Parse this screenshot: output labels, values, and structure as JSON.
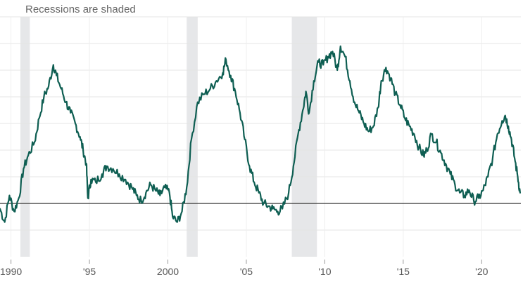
{
  "chart_data": {
    "type": "line",
    "annotation": "Recessions are shaded",
    "x_ticks": [
      {
        "label": "1990",
        "value": 1990
      },
      {
        "label": "'95",
        "value": 1995
      },
      {
        "label": "2000",
        "value": 2000
      },
      {
        "label": "'05",
        "value": 2005
      },
      {
        "label": "'10",
        "value": 2010
      },
      {
        "label": "'15",
        "value": 2015
      },
      {
        "label": "'20",
        "value": 2020
      }
    ],
    "xlim": [
      1989.3,
      2022.5
    ],
    "ylim": [
      -2,
      7
    ],
    "y_gridlines": [
      -1,
      1,
      2,
      3,
      4,
      5,
      6,
      7
    ],
    "baseline": 0,
    "recessions": [
      {
        "start": 1990.6,
        "end": 1991.2
      },
      {
        "start": 2001.2,
        "end": 2001.9
      },
      {
        "start": 2007.9,
        "end": 2009.5
      }
    ],
    "series": [
      {
        "color": "#0e5e52",
        "points": [
          [
            1989.3,
            -0.2
          ],
          [
            1989.6,
            -0.7
          ],
          [
            1989.9,
            0.3
          ],
          [
            1990.2,
            -0.3
          ],
          [
            1990.5,
            0.2
          ],
          [
            1990.8,
            1.3
          ],
          [
            1991.1,
            1.8
          ],
          [
            1991.5,
            2.3
          ],
          [
            1991.8,
            3.2
          ],
          [
            1992.1,
            4.0
          ],
          [
            1992.4,
            4.4
          ],
          [
            1992.7,
            5.2
          ],
          [
            1992.9,
            4.8
          ],
          [
            1993.2,
            4.3
          ],
          [
            1993.5,
            3.8
          ],
          [
            1993.8,
            3.4
          ],
          [
            1994.1,
            3.0
          ],
          [
            1994.4,
            2.5
          ],
          [
            1994.6,
            2.0
          ],
          [
            1994.8,
            1.5
          ],
          [
            1994.9,
            0.2
          ],
          [
            1995.1,
            0.9
          ],
          [
            1995.4,
            0.8
          ],
          [
            1995.8,
            1.1
          ],
          [
            1996.1,
            1.4
          ],
          [
            1996.5,
            1.3
          ],
          [
            1996.9,
            1.1
          ],
          [
            1997.3,
            0.9
          ],
          [
            1997.7,
            0.6
          ],
          [
            1998.0,
            0.3
          ],
          [
            1998.3,
            0.1
          ],
          [
            1998.6,
            0.4
          ],
          [
            1998.9,
            0.7
          ],
          [
            1999.2,
            0.5
          ],
          [
            1999.5,
            0.3
          ],
          [
            1999.8,
            0.6
          ],
          [
            2000.1,
            0.4
          ],
          [
            2000.3,
            -0.5
          ],
          [
            2000.6,
            -0.7
          ],
          [
            2000.9,
            -0.3
          ],
          [
            2001.2,
            0.6
          ],
          [
            2001.5,
            2.4
          ],
          [
            2001.9,
            3.8
          ],
          [
            2002.3,
            4.1
          ],
          [
            2002.7,
            4.3
          ],
          [
            2003.1,
            4.6
          ],
          [
            2003.5,
            4.9
          ],
          [
            2003.7,
            5.4
          ],
          [
            2004.0,
            4.8
          ],
          [
            2004.3,
            4.2
          ],
          [
            2004.6,
            3.4
          ],
          [
            2004.9,
            2.4
          ],
          [
            2005.2,
            1.4
          ],
          [
            2005.5,
            0.8
          ],
          [
            2005.8,
            0.4
          ],
          [
            2006.1,
            0.0
          ],
          [
            2006.4,
            -0.1
          ],
          [
            2006.7,
            -0.2
          ],
          [
            2007.0,
            -0.3
          ],
          [
            2007.3,
            -0.2
          ],
          [
            2007.7,
            0.4
          ],
          [
            2008.0,
            1.4
          ],
          [
            2008.3,
            2.6
          ],
          [
            2008.6,
            3.5
          ],
          [
            2008.8,
            4.2
          ],
          [
            2009.0,
            3.4
          ],
          [
            2009.3,
            4.6
          ],
          [
            2009.6,
            5.3
          ],
          [
            2009.9,
            5.2
          ],
          [
            2010.2,
            5.5
          ],
          [
            2010.5,
            5.7
          ],
          [
            2010.8,
            5.0
          ],
          [
            2011.0,
            5.9
          ],
          [
            2011.3,
            5.5
          ],
          [
            2011.6,
            4.6
          ],
          [
            2011.9,
            3.8
          ],
          [
            2012.2,
            3.4
          ],
          [
            2012.5,
            3.0
          ],
          [
            2012.8,
            2.7
          ],
          [
            2013.1,
            2.9
          ],
          [
            2013.4,
            3.6
          ],
          [
            2013.6,
            4.6
          ],
          [
            2013.9,
            5.1
          ],
          [
            2014.2,
            4.7
          ],
          [
            2014.5,
            4.1
          ],
          [
            2014.8,
            3.7
          ],
          [
            2015.1,
            3.2
          ],
          [
            2015.4,
            2.9
          ],
          [
            2015.7,
            2.6
          ],
          [
            2016.0,
            2.1
          ],
          [
            2016.3,
            1.8
          ],
          [
            2016.5,
            2.0
          ],
          [
            2016.8,
            2.6
          ],
          [
            2017.1,
            2.3
          ],
          [
            2017.4,
            1.9
          ],
          [
            2017.7,
            1.5
          ],
          [
            2018.0,
            1.1
          ],
          [
            2018.3,
            0.7
          ],
          [
            2018.6,
            0.4
          ],
          [
            2018.9,
            0.3
          ],
          [
            2019.2,
            0.5
          ],
          [
            2019.5,
            0.1
          ],
          [
            2019.8,
            0.2
          ],
          [
            2020.1,
            0.5
          ],
          [
            2020.4,
            1.0
          ],
          [
            2020.7,
            1.7
          ],
          [
            2021.0,
            2.6
          ],
          [
            2021.3,
            3.1
          ],
          [
            2021.5,
            3.3
          ],
          [
            2021.7,
            2.9
          ],
          [
            2021.9,
            2.4
          ],
          [
            2022.1,
            1.7
          ],
          [
            2022.3,
            1.0
          ],
          [
            2022.45,
            0.4
          ]
        ]
      }
    ]
  }
}
